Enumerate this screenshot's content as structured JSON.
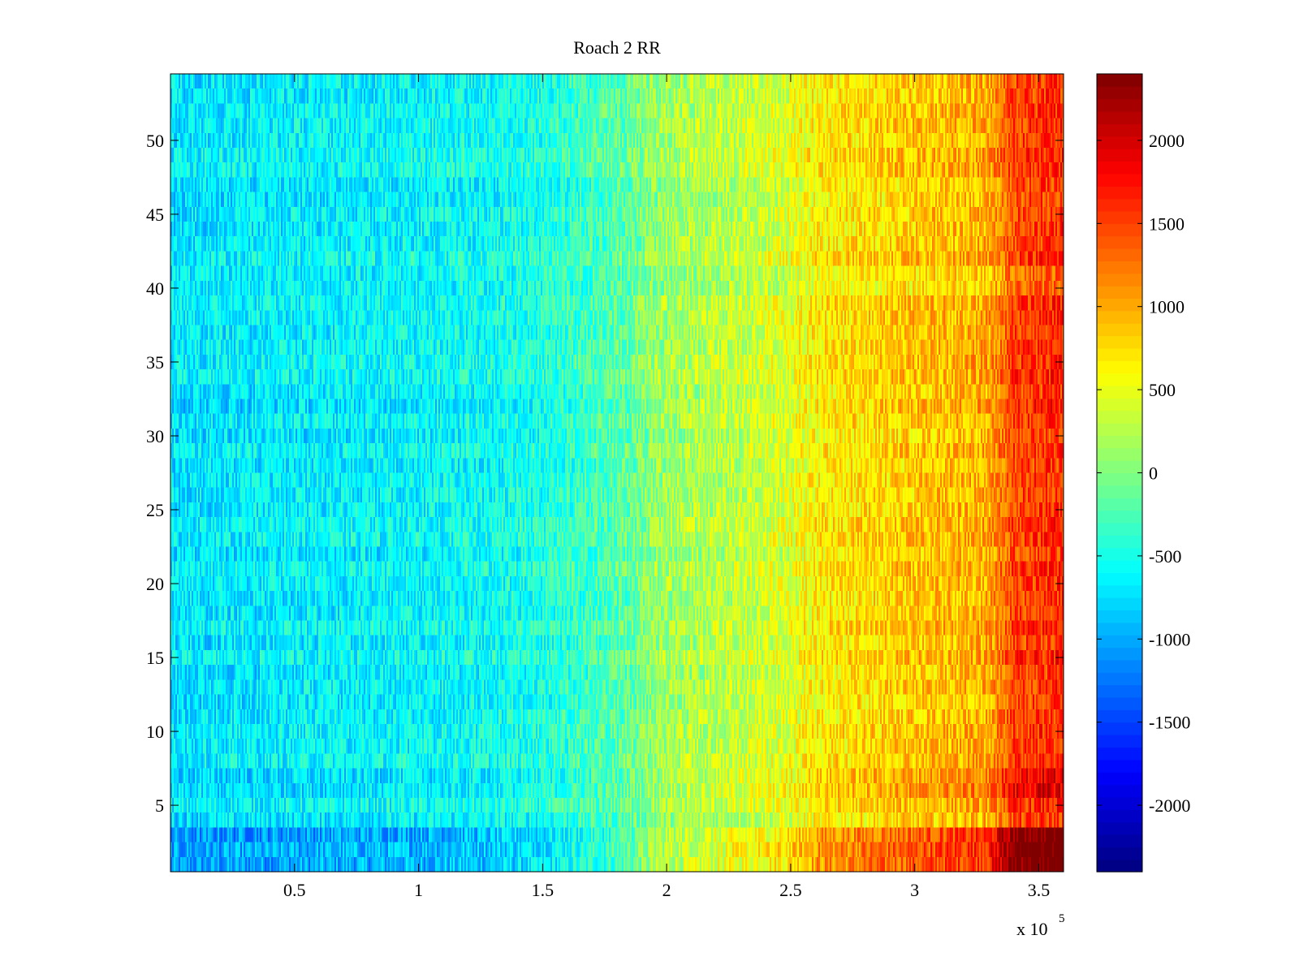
{
  "chart_data": {
    "type": "heatmap",
    "title": "Roach 2 RR",
    "xlabel": "",
    "ylabel": "",
    "x_exponent_label": "x 10",
    "x_exponent_power": "5",
    "xlim": [
      0,
      3.6
    ],
    "ylim": [
      0.5,
      54.5
    ],
    "x_ticks": [
      {
        "value": 0.5,
        "label": "0.5"
      },
      {
        "value": 1,
        "label": "1"
      },
      {
        "value": 1.5,
        "label": "1.5"
      },
      {
        "value": 2,
        "label": "2"
      },
      {
        "value": 2.5,
        "label": "2.5"
      },
      {
        "value": 3,
        "label": "3"
      },
      {
        "value": 3.5,
        "label": "3.5"
      }
    ],
    "y_ticks": [
      {
        "value": 5,
        "label": "5"
      },
      {
        "value": 10,
        "label": "10"
      },
      {
        "value": 15,
        "label": "15"
      },
      {
        "value": 20,
        "label": "20"
      },
      {
        "value": 25,
        "label": "25"
      },
      {
        "value": 30,
        "label": "30"
      },
      {
        "value": 35,
        "label": "35"
      },
      {
        "value": 40,
        "label": "40"
      },
      {
        "value": 45,
        "label": "45"
      },
      {
        "value": 50,
        "label": "50"
      }
    ],
    "colorbar": {
      "range": [
        -2400,
        2400
      ],
      "colormap": "jet",
      "ticks": [
        {
          "value": 2000,
          "label": "2000"
        },
        {
          "value": 1500,
          "label": "1500"
        },
        {
          "value": 1000,
          "label": "1000"
        },
        {
          "value": 500,
          "label": "500"
        },
        {
          "value": 0,
          "label": "0"
        },
        {
          "value": -500,
          "label": "-500"
        },
        {
          "value": -1000,
          "label": "-1000"
        },
        {
          "value": -1500,
          "label": "-1500"
        },
        {
          "value": -2000,
          "label": "-2000"
        }
      ]
    },
    "rows": 54,
    "x_profile": {
      "x": [
        0,
        0.5,
        1.0,
        1.3,
        1.5,
        1.8,
        2.0,
        2.2,
        2.5,
        2.6,
        3.0,
        3.3,
        3.4,
        3.6
      ],
      "values": [
        -700,
        -650,
        -600,
        -550,
        -450,
        -200,
        150,
        250,
        450,
        650,
        850,
        1000,
        1500,
        1600
      ]
    },
    "row_features": [
      {
        "rows": [
          1,
          2,
          3
        ],
        "amplitude": 1.6
      },
      {
        "rows": [
          6,
          7
        ],
        "amplitude": 1.2
      },
      {
        "rows": [
          32
        ],
        "amplitude": 1.1
      },
      {
        "rows": [
          40,
          41
        ],
        "amplitude": 0.9
      },
      {
        "rows": [
          51,
          52,
          53
        ],
        "amplitude": 1.0
      }
    ]
  }
}
